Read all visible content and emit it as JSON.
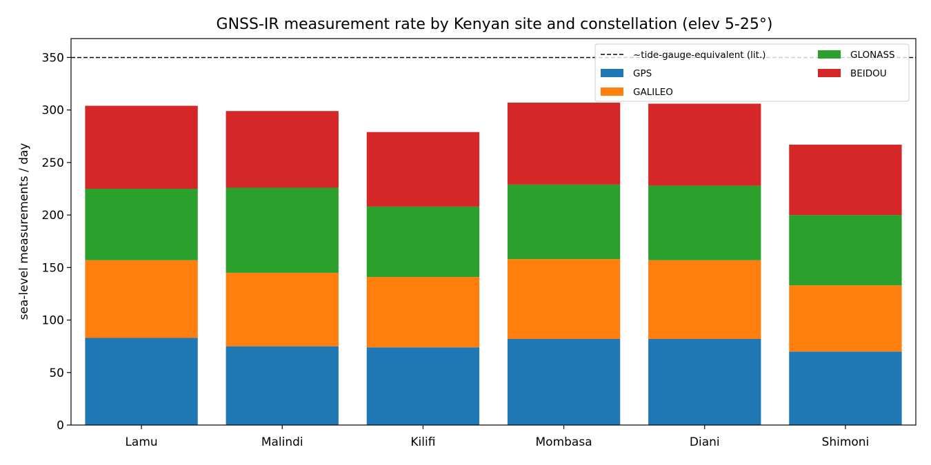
{
  "chart_data": {
    "type": "bar",
    "stacked": true,
    "title": "GNSS-IR measurement rate by Kenyan site and constellation (elev 5-25°)",
    "xlabel": "",
    "ylabel": "sea-level measurements / day",
    "ylim": [
      0,
      368
    ],
    "yticks": [
      0,
      50,
      100,
      150,
      200,
      250,
      300,
      350
    ],
    "categories": [
      "Lamu",
      "Malindi",
      "Kilifi",
      "Mombasa",
      "Diani",
      "Shimoni"
    ],
    "series": [
      {
        "name": "GPS",
        "color": "#1f77b4",
        "values": [
          83,
          75,
          74,
          82,
          82,
          70
        ]
      },
      {
        "name": "GALILEO",
        "color": "#ff7f0e",
        "values": [
          74,
          70,
          67,
          76,
          75,
          63
        ]
      },
      {
        "name": "GLONASS",
        "color": "#2ca02c",
        "values": [
          68,
          81,
          67,
          71,
          71,
          67
        ]
      },
      {
        "name": "BEIDOU",
        "color": "#d62728",
        "values": [
          79,
          73,
          71,
          78,
          78,
          67
        ]
      }
    ],
    "reference_line": {
      "name": "~tide-gauge-equivalent (lit.)",
      "value": 350,
      "style": "dashed",
      "color": "#000000"
    },
    "legend": {
      "placement": "top-right",
      "columns": 2
    },
    "grid": false
  }
}
